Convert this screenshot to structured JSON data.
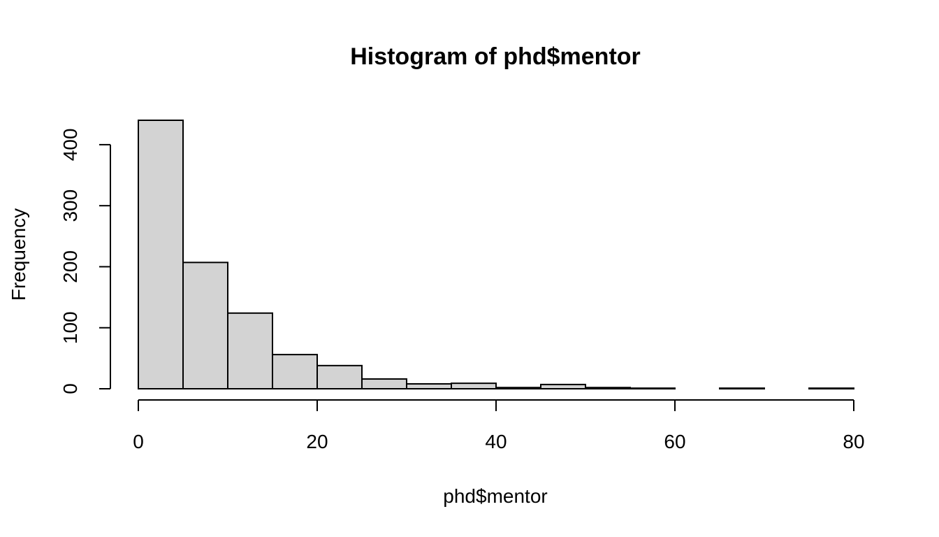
{
  "chart_data": {
    "type": "bar",
    "title": "Histogram of phd$mentor",
    "xlabel": "phd$mentor",
    "ylabel": "Frequency",
    "bins": [
      {
        "from": 0,
        "to": 5,
        "count": 440
      },
      {
        "from": 5,
        "to": 10,
        "count": 207
      },
      {
        "from": 10,
        "to": 15,
        "count": 124
      },
      {
        "from": 15,
        "to": 20,
        "count": 56
      },
      {
        "from": 20,
        "to": 25,
        "count": 38
      },
      {
        "from": 25,
        "to": 30,
        "count": 16
      },
      {
        "from": 30,
        "to": 35,
        "count": 8
      },
      {
        "from": 35,
        "to": 40,
        "count": 9
      },
      {
        "from": 40,
        "to": 45,
        "count": 2
      },
      {
        "from": 45,
        "to": 50,
        "count": 7
      },
      {
        "from": 50,
        "to": 55,
        "count": 2
      },
      {
        "from": 55,
        "to": 60,
        "count": 1
      },
      {
        "from": 60,
        "to": 65,
        "count": 0
      },
      {
        "from": 65,
        "to": 70,
        "count": 1
      },
      {
        "from": 70,
        "to": 75,
        "count": 0
      },
      {
        "from": 75,
        "to": 80,
        "count": 1
      }
    ],
    "xlim": [
      0,
      80
    ],
    "ylim": [
      0,
      440
    ],
    "xticks": [
      0,
      20,
      40,
      60,
      80
    ],
    "yticks": [
      0,
      100,
      200,
      300,
      400
    ],
    "bar_color": "#d3d3d3",
    "grid": false
  }
}
